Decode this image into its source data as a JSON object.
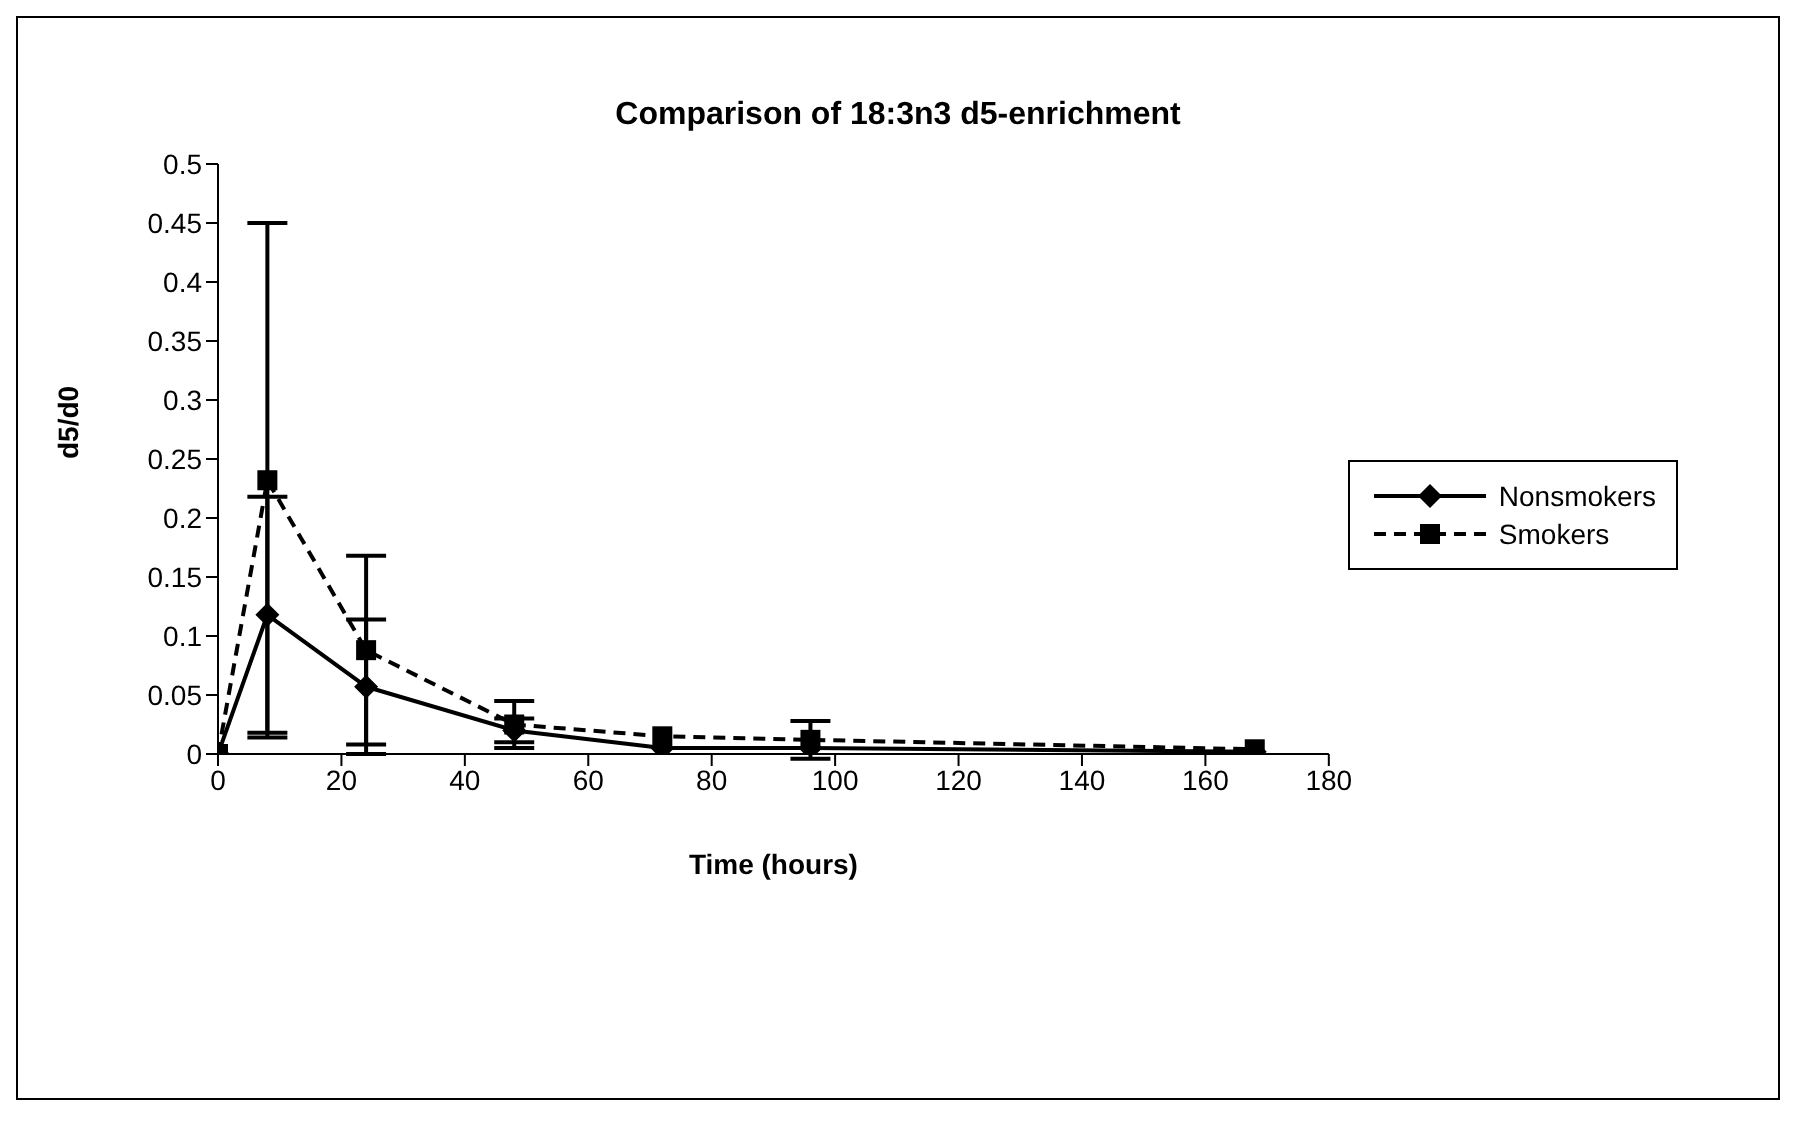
{
  "chart_data": {
    "type": "line",
    "title": "Comparison of 18:3n3 d5-enrichment",
    "xlabel": "Time (hours)",
    "ylabel": "d5/d0",
    "x": [
      0,
      8,
      24,
      48,
      72,
      96,
      168
    ],
    "series": [
      {
        "name": "Nonsmokers",
        "color": "#000000",
        "marker": "diamond",
        "line_style": "solid",
        "values": [
          0,
          0.118,
          0.057,
          0.02,
          0.005,
          0.005,
          0.002
        ],
        "errors": [
          null,
          0.1,
          0.057,
          0.01,
          null,
          null,
          null
        ]
      },
      {
        "name": "Smokers",
        "color": "#000000",
        "marker": "square",
        "line_style": "dashed",
        "values": [
          0,
          0.232,
          0.088,
          0.025,
          0.015,
          0.012,
          0.004
        ],
        "errors": [
          null,
          0.218,
          0.08,
          0.02,
          null,
          0.016,
          null
        ]
      }
    ],
    "xlim": [
      0,
      180
    ],
    "xticks": [
      0,
      20,
      40,
      60,
      80,
      100,
      120,
      140,
      160,
      180
    ],
    "ylim": [
      0,
      0.5
    ],
    "yticks": [
      0,
      0.05,
      0.1,
      0.15,
      0.2,
      0.25,
      0.3,
      0.35,
      0.4,
      0.45,
      0.5
    ],
    "legend": "right"
  }
}
